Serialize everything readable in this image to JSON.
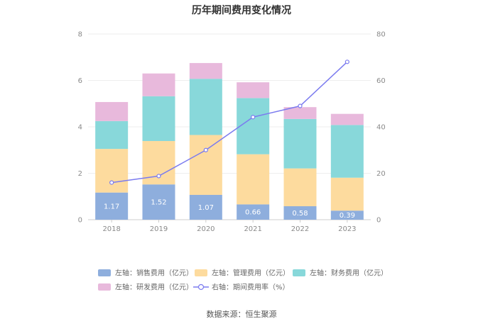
{
  "chart_data": {
    "type": "bar",
    "title": "历年期间费用变化情况",
    "categories": [
      "2018",
      "2019",
      "2020",
      "2021",
      "2022",
      "2023"
    ],
    "left_axis": {
      "ylim": [
        0,
        8
      ],
      "ticks": [
        "0",
        "2",
        "4",
        "6",
        "8"
      ]
    },
    "right_axis": {
      "ylim": [
        0,
        80
      ],
      "ticks": [
        "0",
        "20",
        "40",
        "60",
        "80"
      ]
    },
    "series": [
      {
        "name": "左轴：销售费用（亿元）",
        "axis": "left",
        "type": "bar",
        "color": "#8eaedd",
        "values": [
          1.17,
          1.52,
          1.07,
          0.66,
          0.58,
          0.39
        ],
        "labels": [
          "1.17",
          "1.52",
          "1.07",
          "0.66",
          "0.58",
          "0.39"
        ]
      },
      {
        "name": "左轴：管理费用（亿元）",
        "axis": "left",
        "type": "bar",
        "color": "#fddb9e",
        "values": [
          1.88,
          1.87,
          2.58,
          2.16,
          1.63,
          1.42
        ]
      },
      {
        "name": "左轴：财务费用（亿元）",
        "axis": "left",
        "type": "bar",
        "color": "#88d8da",
        "values": [
          1.2,
          1.93,
          2.42,
          2.42,
          2.13,
          2.27
        ]
      },
      {
        "name": "左轴：研发费用（亿元）",
        "axis": "left",
        "type": "bar",
        "color": "#e8b9dc",
        "values": [
          0.82,
          0.98,
          0.68,
          0.68,
          0.51,
          0.48
        ]
      },
      {
        "name": "右轴：期间费用率（%）",
        "axis": "right",
        "type": "line",
        "color": "#7b7bef",
        "values": [
          16.0,
          18.8,
          30.0,
          44.2,
          49.0,
          68.0
        ]
      }
    ]
  },
  "source_text": "数据来源：恒生聚源"
}
